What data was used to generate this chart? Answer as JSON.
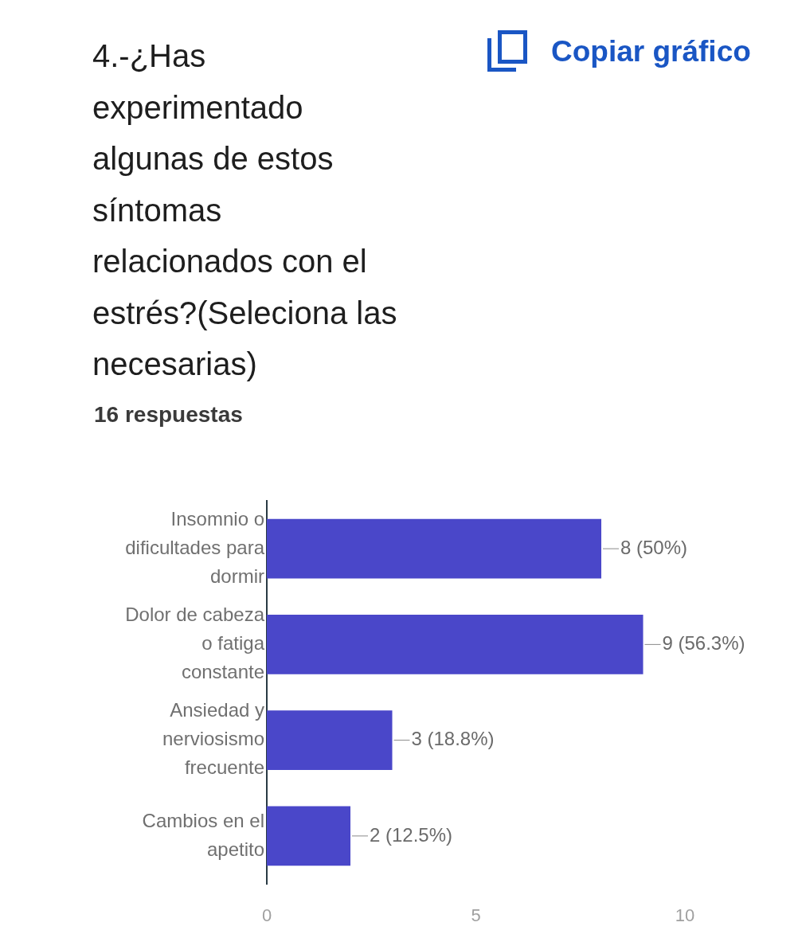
{
  "chart_data": {
    "type": "bar",
    "orientation": "horizontal",
    "title": "4.-¿Has experimentado algunas de estos síntomas relacionados con el estrés?(Seleciona las necesarias)",
    "subtitle": "16 respuestas",
    "annotations": [
      "Copiar gráfico"
    ],
    "categories": [
      "Insomnio o dificultades para dormir",
      "Dolor de cabeza o fatiga constante",
      "Ansiedad y nerviosismo frecuente",
      "Cambios en el apetito"
    ],
    "values": [
      8,
      9,
      3,
      2
    ],
    "value_labels": [
      "8 (50%)",
      "9 (56.3%)",
      "3 (18.8%)",
      "2 (12.5%)"
    ],
    "color": "#4a47c9",
    "xlim": [
      0,
      10
    ],
    "xticks": [
      0,
      5,
      10
    ]
  }
}
